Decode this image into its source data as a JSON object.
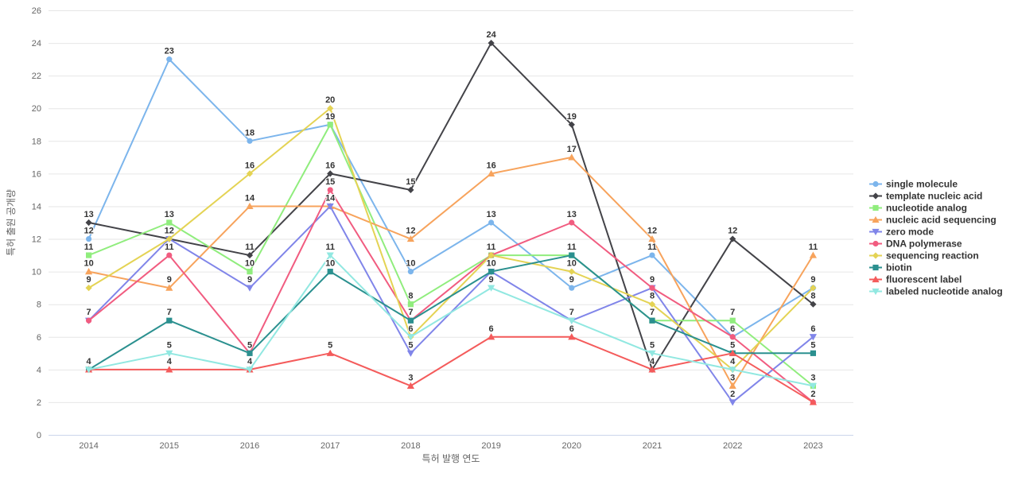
{
  "chart_data": {
    "type": "line",
    "title": "",
    "xlabel": "특허 발행 연도",
    "ylabel": "특허 출원 공개량",
    "x": [
      "2014",
      "2015",
      "2016",
      "2017",
      "2018",
      "2019",
      "2020",
      "2021",
      "2022",
      "2023"
    ],
    "ylim": [
      0,
      26
    ],
    "ytick_step": 2,
    "grid": true,
    "legend_position": "right",
    "colors": {
      "grid": "#e6e6e6",
      "axis_line": "#ccd6eb",
      "tick_text": "#666666",
      "label_text": "#333333"
    },
    "series": [
      {
        "name": "single molecule",
        "color": "#7cb5ec",
        "marker": "circle",
        "values": [
          12,
          23,
          18,
          19,
          10,
          13,
          9,
          11,
          6,
          9
        ]
      },
      {
        "name": "template nucleic acid",
        "color": "#434348",
        "marker": "diamond",
        "values": [
          13,
          12,
          11,
          16,
          15,
          24,
          19,
          4,
          12,
          8
        ]
      },
      {
        "name": "nucleotide analog",
        "color": "#90ed7d",
        "marker": "square",
        "values": [
          11,
          13,
          10,
          19,
          8,
          11,
          11,
          7,
          7,
          3
        ]
      },
      {
        "name": "nucleic acid sequencing",
        "color": "#f7a35c",
        "marker": "triangle",
        "values": [
          10,
          9,
          14,
          14,
          12,
          16,
          17,
          12,
          3,
          11
        ]
      },
      {
        "name": "zero mode",
        "color": "#8085e9",
        "marker": "triangle-down",
        "values": [
          7,
          12,
          9,
          14,
          5,
          10,
          7,
          9,
          2,
          6
        ]
      },
      {
        "name": "DNA polymerase",
        "color": "#f15c80",
        "marker": "circle",
        "values": [
          7,
          11,
          5,
          15,
          7,
          11,
          13,
          9,
          6,
          2
        ]
      },
      {
        "name": "sequencing reaction",
        "color": "#e4d354",
        "marker": "diamond",
        "values": [
          9,
          12,
          16,
          20,
          6,
          11,
          10,
          8,
          4,
          9
        ]
      },
      {
        "name": "biotin",
        "color": "#2b908f",
        "marker": "square",
        "values": [
          4,
          7,
          5,
          10,
          7,
          10,
          11,
          7,
          5,
          5
        ]
      },
      {
        "name": "fluorescent label",
        "color": "#f45b5b",
        "marker": "triangle",
        "values": [
          4,
          4,
          4,
          5,
          3,
          6,
          6,
          4,
          5,
          2
        ]
      },
      {
        "name": "labeled nucleotide analog",
        "color": "#91e8e1",
        "marker": "triangle-down",
        "values": [
          4,
          5,
          4,
          11,
          6,
          9,
          7,
          5,
          4,
          3
        ]
      }
    ]
  }
}
